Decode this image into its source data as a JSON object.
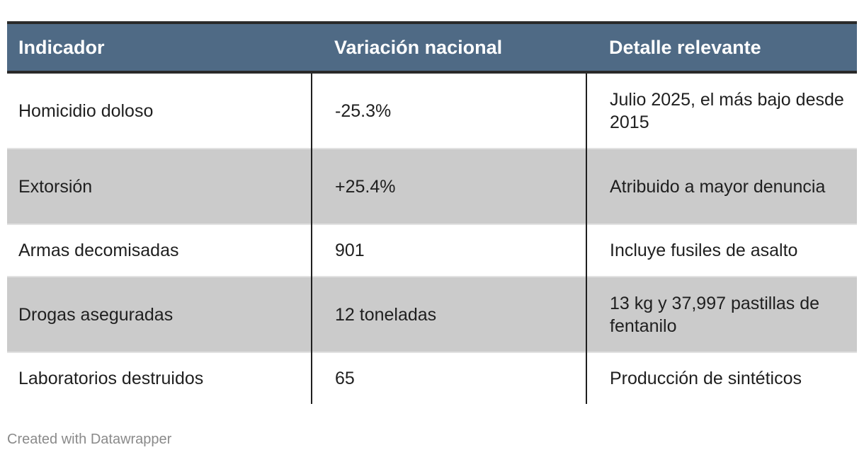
{
  "chart_data": {
    "type": "table",
    "columns": [
      "Indicador",
      "Variación nacional",
      "Detalle relevante"
    ],
    "rows": [
      {
        "indicador": "Homicidio doloso",
        "variacion": "-25.3%",
        "detalle": "Julio 2025, el más bajo desde 2015"
      },
      {
        "indicador": "Extorsión",
        "variacion": "+25.4%",
        "detalle": "Atribuido a mayor denuncia"
      },
      {
        "indicador": "Armas decomisadas",
        "variacion": "901",
        "detalle": "Incluye fusiles de asalto"
      },
      {
        "indicador": "Drogas aseguradas",
        "variacion": "12 toneladas",
        "detalle": "13 kg y 37,997 pastillas de fentanilo"
      },
      {
        "indicador": "Laboratorios destruidos",
        "variacion": "65",
        "detalle": "Producción de sintéticos"
      }
    ],
    "header_color": "#4f6a85",
    "shaded_row_color": "#cbcbcb"
  },
  "footer": {
    "credit": "Created with Datawrapper"
  }
}
